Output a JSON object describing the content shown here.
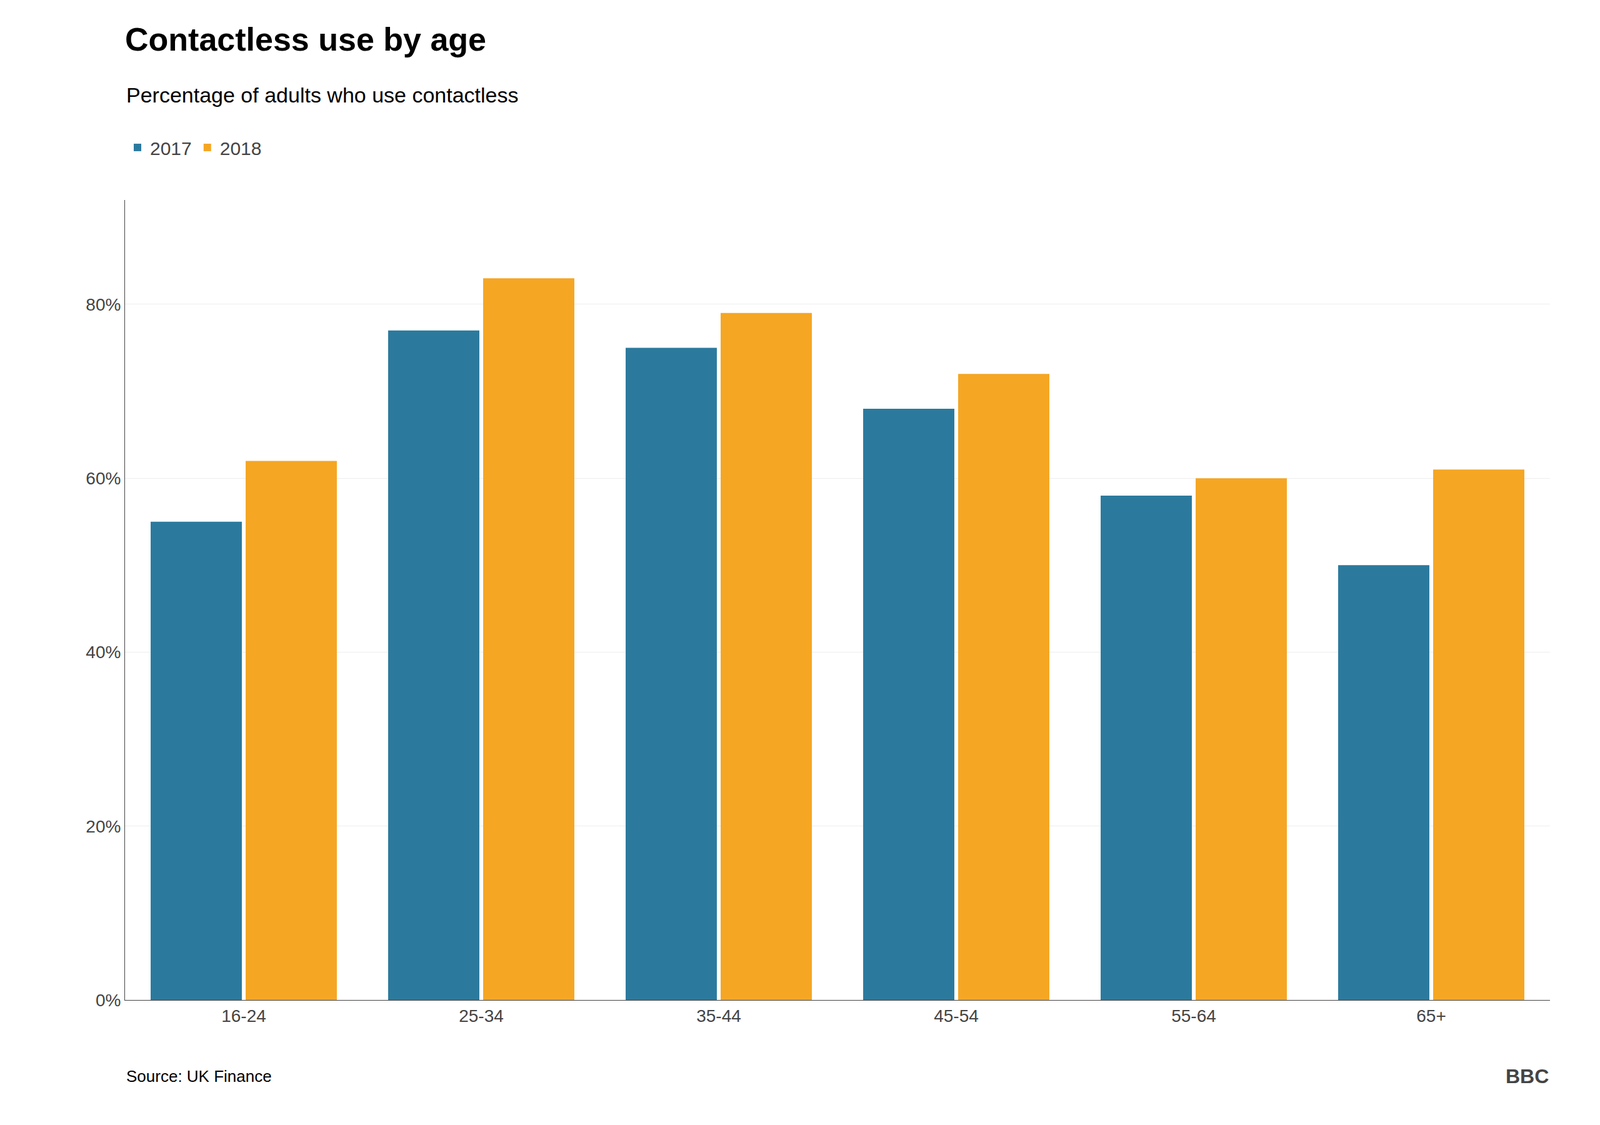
{
  "chart_data": {
    "type": "bar",
    "title": "Contactless use by age",
    "subtitle": "Percentage of adults who use contactless",
    "source": "Source: UK Finance",
    "annotations": [
      "BBC"
    ],
    "categories": [
      "16-24",
      "25-34",
      "35-44",
      "45-54",
      "55-64",
      "65+"
    ],
    "series": [
      {
        "name": "2017",
        "color": "#2B7A9E",
        "values": [
          55,
          77,
          75,
          68,
          58,
          50
        ]
      },
      {
        "name": "2018",
        "color": "#F5A623",
        "values": [
          62,
          83,
          79,
          72,
          60,
          61
        ]
      }
    ],
    "ylim": [
      0,
      92
    ],
    "yticks": [
      {
        "value": 0,
        "label": "0%"
      },
      {
        "value": 20,
        "label": "20%"
      },
      {
        "value": 40,
        "label": "40%"
      },
      {
        "value": 60,
        "label": "60%"
      },
      {
        "value": 80,
        "label": "80%"
      }
    ],
    "grid": true,
    "legend": "top"
  }
}
